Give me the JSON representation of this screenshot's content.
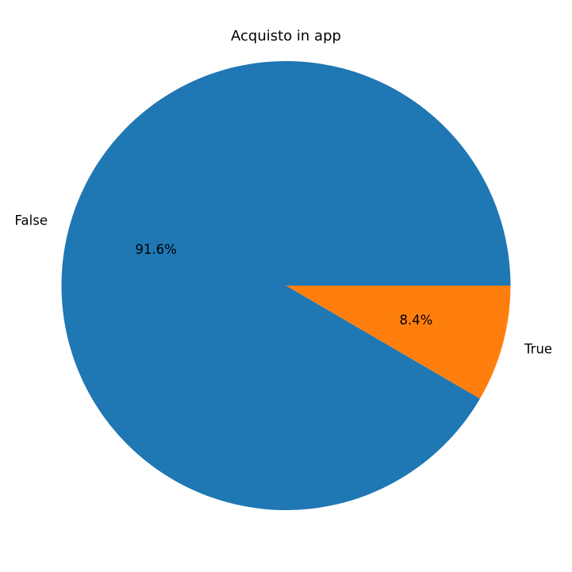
{
  "chart_data": {
    "type": "pie",
    "title": "Acquisto in app",
    "categories": [
      "False",
      "True"
    ],
    "values": [
      91.6,
      8.4
    ],
    "percent_labels": [
      "91.6%",
      "8.4%"
    ],
    "colors": [
      "#1f77b4",
      "#ff7f0e"
    ],
    "start_angle_deg": 0,
    "direction": "counterclockwise",
    "legend": "none"
  }
}
